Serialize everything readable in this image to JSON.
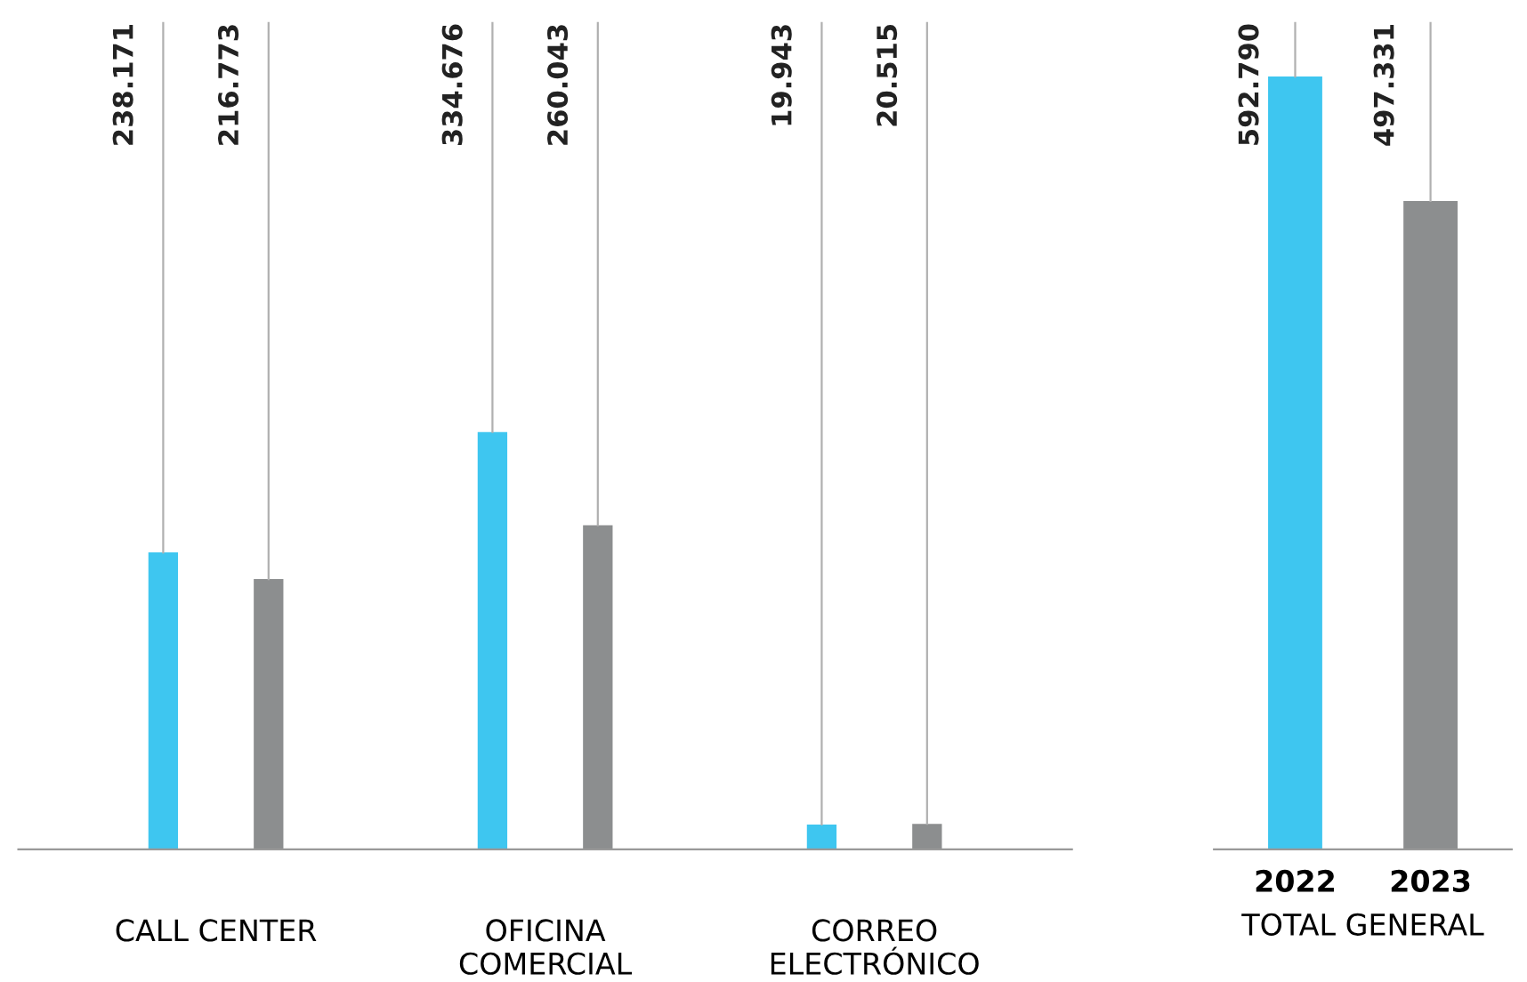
{
  "chart_data": [
    {
      "type": "bar",
      "categories": [
        "CALL CENTER",
        "OFICINA\nCOMERCIAL",
        "CORREO\nELECTRÓNICO"
      ],
      "series": [
        {
          "color": "#3ec6f0",
          "values": [
            238171,
            334676,
            19943
          ],
          "value_labels": [
            "238.171",
            "334.676",
            "19.943"
          ]
        },
        {
          "color": "#8c8e8f",
          "values": [
            216773,
            260043,
            20515
          ],
          "value_labels": [
            "216.773",
            "260.043",
            "20.515"
          ]
        }
      ]
    },
    {
      "type": "bar",
      "categories": [
        "2022",
        "2023"
      ],
      "xlabel": "TOTAL GENERAL",
      "colors": [
        "#3ec6f0",
        "#8c8e8f"
      ],
      "values": [
        592790,
        497331
      ],
      "value_labels": [
        "592.790",
        "497.331"
      ]
    }
  ]
}
